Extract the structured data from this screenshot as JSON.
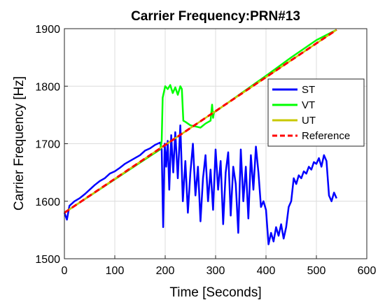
{
  "chart_data": {
    "type": "line",
    "title": "Carrier Frequency:PRN#13",
    "xlabel": "Time [Seconds]",
    "ylabel": "Carrier Frequency [Hz]",
    "xlim": [
      0,
      600
    ],
    "ylim": [
      1500,
      1900
    ],
    "xticks": [
      0,
      100,
      200,
      300,
      400,
      500,
      600
    ],
    "yticks": [
      1500,
      1600,
      1700,
      1800,
      1900
    ],
    "grid": true,
    "legend_position": "right",
    "series": [
      {
        "name": "ST",
        "color": "#0000ff",
        "x": [
          0,
          5,
          10,
          20,
          30,
          40,
          50,
          60,
          70,
          80,
          90,
          100,
          110,
          120,
          130,
          140,
          150,
          160,
          170,
          180,
          190,
          193,
          196,
          199,
          202,
          205,
          208,
          212,
          216,
          220,
          225,
          230,
          235,
          240,
          245,
          250,
          255,
          260,
          265,
          270,
          275,
          280,
          285,
          290,
          295,
          300,
          305,
          310,
          315,
          320,
          325,
          330,
          335,
          340,
          345,
          350,
          355,
          360,
          365,
          370,
          375,
          380,
          385,
          390,
          395,
          400,
          405,
          410,
          415,
          420,
          425,
          430,
          435,
          440,
          445,
          450,
          455,
          460,
          465,
          470,
          475,
          480,
          485,
          490,
          495,
          500,
          505,
          510,
          515,
          520,
          525,
          530,
          535,
          540
        ],
        "y": [
          1580,
          1568,
          1592,
          1600,
          1605,
          1612,
          1620,
          1628,
          1635,
          1640,
          1648,
          1652,
          1658,
          1665,
          1670,
          1675,
          1680,
          1688,
          1692,
          1698,
          1702,
          1690,
          1555,
          1700,
          1660,
          1705,
          1620,
          1715,
          1650,
          1720,
          1640,
          1732,
          1600,
          1670,
          1580,
          1650,
          1700,
          1610,
          1660,
          1565,
          1640,
          1680,
          1600,
          1655,
          1585,
          1690,
          1620,
          1670,
          1560,
          1650,
          1685,
          1575,
          1660,
          1630,
          1545,
          1690,
          1600,
          1660,
          1570,
          1680,
          1620,
          1695,
          1650,
          1590,
          1600,
          1585,
          1525,
          1545,
          1530,
          1555,
          1540,
          1560,
          1535,
          1555,
          1590,
          1600,
          1640,
          1630,
          1645,
          1640,
          1652,
          1648,
          1660,
          1655,
          1668,
          1665,
          1675,
          1660,
          1680,
          1670,
          1610,
          1600,
          1615,
          1605
        ]
      },
      {
        "name": "VT",
        "color": "#00ff00",
        "x": [
          0,
          50,
          100,
          150,
          190,
          193,
          195,
          200,
          205,
          210,
          215,
          220,
          225,
          230,
          233,
          236,
          240,
          250,
          260,
          270,
          280,
          290,
          293,
          295,
          297,
          300,
          350,
          400,
          450,
          500,
          540
        ],
        "y": [
          1580,
          1609,
          1638,
          1667,
          1690,
          1705,
          1780,
          1800,
          1795,
          1802,
          1788,
          1798,
          1785,
          1800,
          1795,
          1740,
          1738,
          1732,
          1730,
          1728,
          1735,
          1740,
          1768,
          1745,
          1755,
          1756,
          1787,
          1818,
          1850,
          1880,
          1898
        ]
      },
      {
        "name": "UT",
        "color": "#c8c800",
        "x": [
          0,
          540
        ],
        "y": [
          1580,
          1898
        ]
      },
      {
        "name": "Reference",
        "color": "#ff0000",
        "dashed": true,
        "x": [
          0,
          540
        ],
        "y": [
          1580,
          1898
        ]
      }
    ]
  }
}
